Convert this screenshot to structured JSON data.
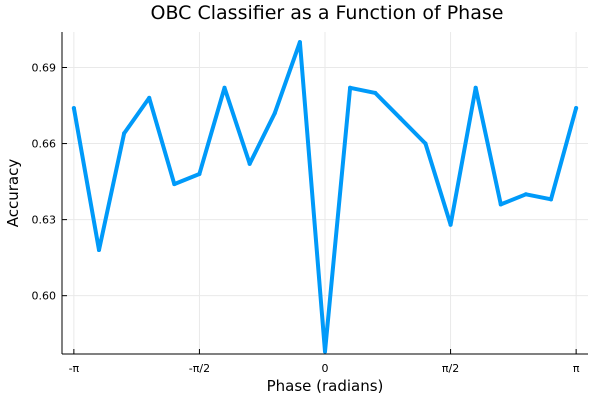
{
  "chart_data": {
    "type": "line",
    "title": "OBC Classifier as a Function of Phase",
    "xlabel": "Phase (radians)",
    "ylabel": "Accuracy",
    "x_ticks": [
      {
        "value": -3.14159,
        "label": "-π"
      },
      {
        "value": -1.5708,
        "label": "-π/2"
      },
      {
        "value": 0,
        "label": "0"
      },
      {
        "value": 1.5708,
        "label": "π/2"
      },
      {
        "value": 3.14159,
        "label": "π"
      }
    ],
    "y_ticks": [
      {
        "value": 0.6,
        "label": "0.60"
      },
      {
        "value": 0.63,
        "label": "0.63"
      },
      {
        "value": 0.66,
        "label": "0.66"
      },
      {
        "value": 0.69,
        "label": "0.69"
      }
    ],
    "xlim": [
      -3.29,
      3.29
    ],
    "ylim": [
      0.577,
      0.704
    ],
    "grid": true,
    "legend": "none",
    "series": [
      {
        "color": "#009af9",
        "x": [
          -3.14159,
          -2.82743,
          -2.51327,
          -2.19911,
          -1.88496,
          -1.5708,
          -1.25664,
          -0.94248,
          -0.62832,
          -0.31416,
          0,
          0.31416,
          0.62832,
          0.94248,
          1.25664,
          1.5708,
          1.88496,
          2.19911,
          2.51327,
          2.82743,
          3.14159
        ],
        "values": [
          0.674,
          0.618,
          0.664,
          0.678,
          0.644,
          0.648,
          0.682,
          0.652,
          0.672,
          0.7,
          0.578,
          0.682,
          0.68,
          0.67,
          0.66,
          0.628,
          0.682,
          0.636,
          0.64,
          0.638,
          0.674
        ]
      }
    ]
  }
}
